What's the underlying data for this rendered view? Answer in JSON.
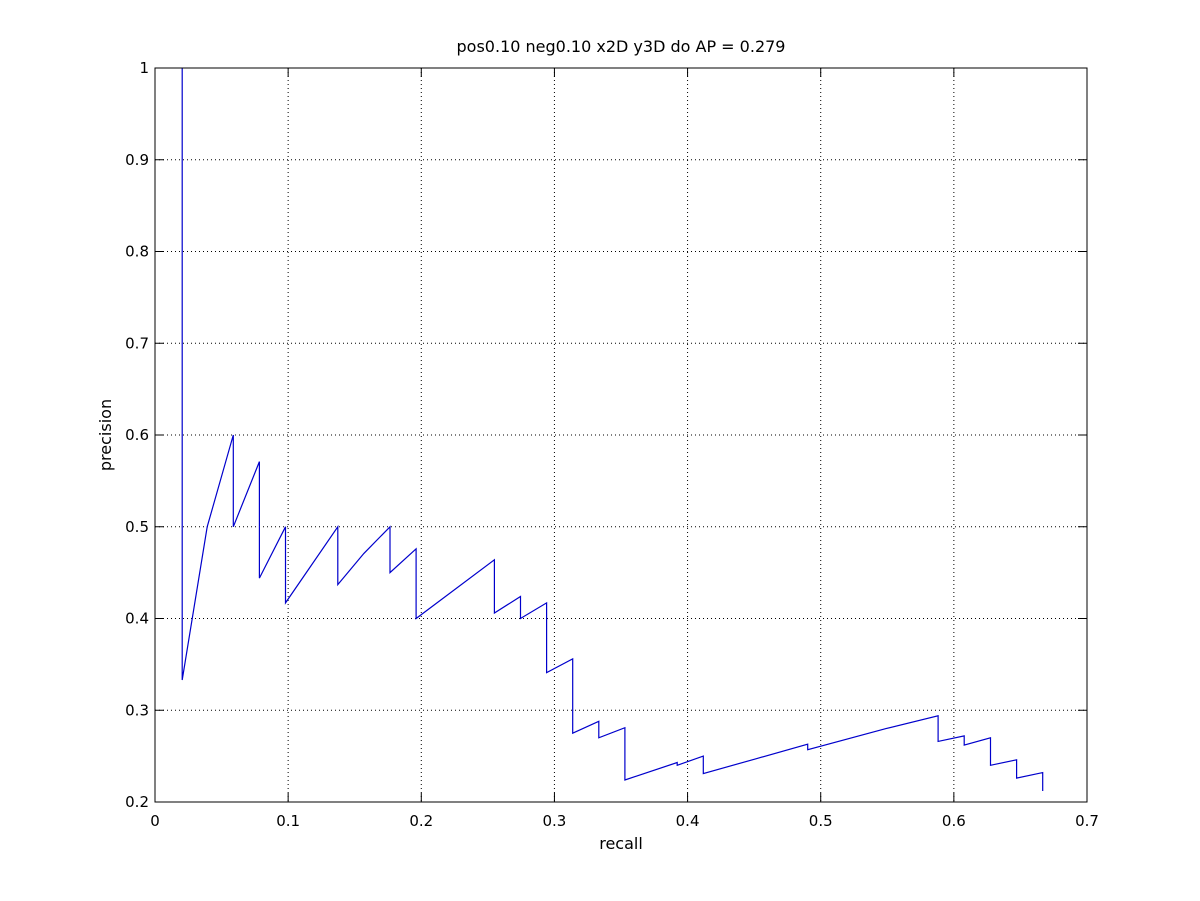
{
  "chart_data": {
    "type": "line",
    "title": "pos0.10 neg0.10 x2D y3D do AP = 0.279",
    "xlabel": "recall",
    "ylabel": "precision",
    "xlim": [
      0,
      0.7
    ],
    "ylim": [
      0.2,
      1
    ],
    "grid": true,
    "x_ticks": [
      0,
      0.1,
      0.2,
      0.3,
      0.4,
      0.5,
      0.6,
      0.7
    ],
    "x_tick_labels": [
      "0",
      "0.1",
      "0.2",
      "0.3",
      "0.4",
      "0.5",
      "0.6",
      "0.7"
    ],
    "y_ticks": [
      0.2,
      0.3,
      0.4,
      0.5,
      0.6,
      0.7,
      0.8,
      0.9,
      1
    ],
    "y_tick_labels": [
      "0.2",
      "0.3",
      "0.4",
      "0.5",
      "0.6",
      "0.7",
      "0.8",
      "0.9",
      "1"
    ],
    "series": [
      {
        "color": "#0000cc",
        "x": [
          0.0204,
          0.0204,
          0.0392,
          0.0588,
          0.0588,
          0.0784,
          0.0784,
          0.098,
          0.098,
          0.1373,
          0.1373,
          0.1569,
          0.1765,
          0.1765,
          0.1961,
          0.1961,
          0.2549,
          0.2549,
          0.2745,
          0.2745,
          0.2941,
          0.2941,
          0.3137,
          0.3137,
          0.3333,
          0.3333,
          0.3529,
          0.3529,
          0.3922,
          0.3922,
          0.4118,
          0.4118,
          0.451,
          0.4902,
          0.4902,
          0.549,
          0.5882,
          0.5882,
          0.6078,
          0.6078,
          0.6275,
          0.6275,
          0.6471,
          0.6471,
          0.6667,
          0.6667
        ],
        "y": [
          1.0,
          0.333,
          0.5,
          0.6,
          0.5,
          0.571,
          0.444,
          0.5,
          0.417,
          0.5,
          0.437,
          0.471,
          0.5,
          0.45,
          0.476,
          0.4,
          0.464,
          0.406,
          0.424,
          0.4,
          0.417,
          0.341,
          0.356,
          0.275,
          0.288,
          0.27,
          0.281,
          0.224,
          0.243,
          0.24,
          0.25,
          0.231,
          0.247,
          0.263,
          0.257,
          0.28,
          0.294,
          0.266,
          0.272,
          0.262,
          0.27,
          0.24,
          0.246,
          0.226,
          0.232,
          0.212
        ]
      }
    ]
  }
}
